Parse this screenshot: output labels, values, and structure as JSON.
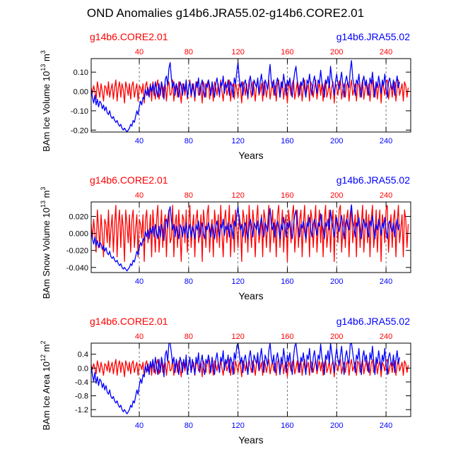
{
  "title": "OND Anomalies g14b6.JRA55.02-g14b6.CORE2.01",
  "colors": {
    "red": "#ff0000",
    "blue": "#0000ff",
    "axis": "#000000",
    "grid": "#555555"
  },
  "chart_data": [
    {
      "type": "line",
      "ylabel": "BAm Ice Volume 10",
      "ylabel_exp": "13",
      "ylabel_unit": " m",
      "ylabel_unit_exp": "3",
      "xlabel": "Years",
      "xlim": [
        1,
        260
      ],
      "ylim": [
        -0.21,
        0.17
      ],
      "yticks": [
        0.1,
        0.0,
        -0.1,
        -0.2
      ],
      "ytick_labels": [
        "0.10",
        "0.00",
        "-0.10",
        "-0.20"
      ],
      "xticks": [
        40,
        80,
        120,
        160,
        200,
        240
      ],
      "xtick_labels": [
        "40",
        "80",
        "120",
        "160",
        "200",
        "240"
      ],
      "vlines": [
        40,
        80,
        120,
        160,
        200,
        240
      ],
      "legend_left": "g14b6.CORE2.01",
      "legend_right": "g14b6.JRA55.02",
      "series": [
        {
          "name": "g14b6.CORE2.01",
          "color": "#ff0000",
          "key": "red"
        },
        {
          "name": "g14b6.JRA55.02",
          "color": "#0000ff",
          "key": "blue"
        }
      ]
    },
    {
      "type": "line",
      "ylabel": "BAm Snow Volume 10",
      "ylabel_exp": "13",
      "ylabel_unit": " m",
      "ylabel_unit_exp": "3",
      "xlabel": "Years",
      "xlim": [
        1,
        260
      ],
      "ylim": [
        -0.046,
        0.037
      ],
      "yticks": [
        0.02,
        0.0,
        -0.02,
        -0.04
      ],
      "ytick_labels": [
        "0.020",
        "0.000",
        "-0.020",
        "-0.040"
      ],
      "xticks": [
        40,
        80,
        120,
        160,
        200,
        240
      ],
      "xtick_labels": [
        "40",
        "80",
        "120",
        "160",
        "200",
        "240"
      ],
      "vlines": [
        40,
        80,
        120,
        160,
        200,
        240
      ],
      "legend_left": "g14b6.CORE2.01",
      "legend_right": "g14b6.JRA55.02",
      "series": [
        {
          "name": "g14b6.CORE2.01",
          "color": "#ff0000",
          "key": "red"
        },
        {
          "name": "g14b6.JRA55.02",
          "color": "#0000ff",
          "key": "blue"
        }
      ]
    },
    {
      "type": "line",
      "ylabel": "BAm Ice Area 10",
      "ylabel_exp": "12",
      "ylabel_unit": " m",
      "ylabel_unit_exp": "2",
      "xlabel": "Years",
      "xlim": [
        1,
        260
      ],
      "ylim": [
        -1.4,
        0.72
      ],
      "yticks": [
        0.4,
        0.0,
        -0.4,
        -0.8,
        -1.2
      ],
      "ytick_labels": [
        "0.4",
        "0.0",
        "-0.4",
        "-0.8",
        "-1.2"
      ],
      "xticks": [
        40,
        80,
        120,
        160,
        200,
        240
      ],
      "xtick_labels": [
        "40",
        "80",
        "120",
        "160",
        "200",
        "240"
      ],
      "vlines": [
        40,
        80,
        120,
        160,
        200,
        240
      ],
      "legend_left": "g14b6.CORE2.01",
      "legend_right": "g14b6.JRA55.02",
      "series": [
        {
          "name": "g14b6.CORE2.01",
          "color": "#ff0000",
          "key": "red"
        },
        {
          "name": "g14b6.JRA55.02",
          "color": "#0000ff",
          "key": "blue"
        }
      ]
    }
  ],
  "series_values": {
    "red_base": [
      0.02,
      -0.01,
      0.03,
      0.0,
      -0.04,
      0.05,
      0.01,
      -0.03,
      0.04,
      0.0,
      -0.05,
      0.03,
      0.02,
      -0.02,
      0.05,
      -0.03,
      0.01,
      0.04,
      -0.04,
      0.02,
      0.06,
      -0.05,
      0.02,
      0.05,
      -0.03,
      0.04,
      0.01,
      -0.06,
      0.05,
      0.02,
      -0.02,
      0.04,
      -0.04,
      0.03,
      0.05,
      -0.03,
      0.01,
      0.04,
      -0.05,
      0.03,
      0.02,
      -0.01,
      0.04,
      -0.06,
      0.03,
      0.05,
      -0.02,
      0.0,
      0.04,
      -0.05,
      0.05,
      0.01,
      -0.04,
      0.03,
      0.06,
      -0.04,
      0.0,
      0.05,
      -0.03,
      0.02,
      0.04,
      -0.05,
      0.03,
      0.05,
      -0.02,
      -0.01,
      0.06,
      -0.05,
      0.02,
      0.04,
      -0.03,
      0.05,
      0.0,
      -0.06,
      0.04,
      0.03,
      -0.02,
      0.05,
      -0.04,
      0.02,
      0.06,
      -0.03,
      0.01,
      0.04,
      -0.05,
      0.03,
      0.05,
      -0.02,
      0.0,
      0.04,
      -0.06,
      0.05,
      0.02,
      -0.03,
      0.04,
      0.06,
      -0.04,
      0.01,
      0.03,
      -0.05,
      0.05,
      0.02,
      -0.02,
      0.04,
      -0.03,
      0.06,
      0.0,
      -0.05,
      0.03,
      0.05,
      -0.02,
      0.01,
      0.06,
      -0.05,
      0.02,
      0.04,
      -0.04,
      0.05,
      0.01,
      -0.03,
      0.04,
      0.02,
      -0.06,
      0.05,
      0.03,
      -0.02,
      0.04,
      -0.04,
      0.06,
      0.01,
      -0.03,
      0.05,
      0.02,
      -0.05,
      0.03,
      0.06,
      -0.02,
      0.0,
      0.04,
      -0.05,
      0.05,
      0.03,
      -0.03,
      0.02,
      0.06,
      -0.04,
      0.01,
      0.05,
      -0.02,
      0.03,
      -0.05,
      0.04,
      0.06,
      -0.03,
      0.01,
      0.05,
      -0.04,
      0.02,
      0.04,
      -0.06,
      0.05,
      0.02,
      -0.02,
      0.04,
      0.06,
      -0.04,
      0.0,
      0.05,
      -0.03,
      0.03,
      0.05,
      -0.05,
      0.02,
      0.06,
      -0.02,
      0.01,
      0.04,
      -0.05,
      0.05,
      0.03,
      -0.03,
      0.02,
      0.06,
      -0.04,
      0.01,
      0.05,
      -0.02,
      0.04,
      -0.05,
      0.03,
      0.06,
      -0.03,
      0.0,
      0.05,
      -0.04,
      0.02,
      0.05,
      -0.06,
      0.04,
      0.02,
      -0.02,
      0.05,
      0.06,
      -0.04,
      0.01,
      0.04,
      -0.03,
      0.03,
      0.05,
      -0.05,
      0.02,
      0.06,
      -0.02,
      0.01,
      0.04,
      -0.05,
      0.05,
      0.03,
      -0.03,
      0.02,
      0.06,
      -0.04,
      0.01,
      0.05,
      -0.02,
      0.04,
      -0.05,
      0.03,
      0.06,
      -0.03,
      0.0,
      0.05,
      -0.04,
      0.02,
      0.05,
      -0.06,
      0.04,
      0.02,
      -0.02,
      0.05,
      0.06,
      -0.04,
      0.01,
      0.04,
      -0.03,
      0.03,
      0.05,
      -0.05,
      0.02,
      0.06,
      -0.02,
      0.01,
      0.04,
      -0.05,
      0.05,
      0.03,
      -0.03,
      0.02
    ],
    "blue_base": [
      0.01,
      -0.03,
      -0.06,
      -0.02,
      -0.07,
      -0.04,
      -0.08,
      -0.05,
      -0.06,
      -0.09,
      -0.07,
      -0.1,
      -0.08,
      -0.11,
      -0.12,
      -0.1,
      -0.13,
      -0.14,
      -0.13,
      -0.15,
      -0.16,
      -0.15,
      -0.17,
      -0.18,
      -0.17,
      -0.19,
      -0.2,
      -0.19,
      -0.2,
      -0.21,
      -0.2,
      -0.19,
      -0.17,
      -0.18,
      -0.15,
      -0.16,
      -0.13,
      -0.1,
      -0.12,
      -0.08,
      -0.05,
      -0.07,
      -0.03,
      -0.04,
      0.01,
      -0.02,
      0.02,
      -0.03,
      0.03,
      0.0,
      0.04,
      -0.02,
      0.05,
      0.01,
      -0.03,
      0.04,
      -0.02,
      0.05,
      0.02,
      -0.04,
      0.06,
      0.08,
      0.03,
      0.12,
      0.15,
      0.07,
      0.02,
      0.05,
      -0.02,
      0.04,
      0.01,
      -0.03,
      0.05,
      0.03,
      -0.02,
      0.04,
      0.0,
      0.06,
      -0.03,
      0.02,
      0.05,
      -0.02,
      0.04,
      0.01,
      -0.03,
      0.05,
      0.02,
      0.07,
      -0.02,
      0.03,
      0.06,
      0.0,
      -0.03,
      0.04,
      0.02,
      0.06,
      0.03,
      -0.02,
      0.05,
      0.01,
      -0.03,
      0.04,
      0.07,
      0.02,
      -0.02,
      0.05,
      0.03,
      0.08,
      -0.01,
      0.04,
      0.02,
      0.06,
      -0.02,
      0.05,
      0.03,
      -0.03,
      0.07,
      0.04,
      0.1,
      0.15,
      0.07,
      0.02,
      0.05,
      -0.02,
      0.04,
      0.06,
      0.01,
      -0.03,
      0.05,
      0.08,
      0.03,
      -0.02,
      0.06,
      0.04,
      0.02,
      0.07,
      -0.01,
      0.05,
      0.09,
      0.03,
      -0.02,
      0.06,
      0.04,
      0.01,
      0.08,
      0.14,
      0.05,
      0.02,
      0.06,
      -0.02,
      0.04,
      0.07,
      0.03,
      -0.03,
      0.05,
      0.02,
      0.09,
      0.04,
      -0.02,
      0.06,
      0.03,
      0.07,
      0.01,
      -0.03,
      0.05,
      0.1,
      0.13,
      0.06,
      0.02,
      -0.02,
      0.05,
      0.03,
      0.07,
      0.01,
      -0.03,
      0.06,
      0.04,
      0.09,
      0.02,
      -0.02,
      0.05,
      0.08,
      0.03,
      -0.01,
      0.06,
      0.04,
      0.11,
      0.05,
      0.02,
      -0.03,
      0.06,
      0.04,
      0.08,
      0.02,
      0.13,
      0.07,
      0.03,
      -0.02,
      0.05,
      0.09,
      0.04,
      0.01,
      0.06,
      0.1,
      0.03,
      -0.03,
      0.05,
      0.08,
      0.04,
      0.02,
      0.11,
      0.16,
      0.07,
      0.03,
      -0.02,
      0.06,
      0.04,
      0.09,
      0.02,
      -0.03,
      0.05,
      0.08,
      0.03,
      0.06,
      0.01,
      -0.02,
      0.07,
      0.04,
      0.1,
      0.03,
      -0.03,
      0.05,
      0.02,
      0.08,
      0.04,
      -0.01,
      0.06,
      0.03,
      0.09,
      0.02,
      -0.03,
      0.05,
      0.07,
      0.03,
      0.01,
      0.06,
      -0.02,
      0.04,
      0.08,
      0.02,
      0.05
    ]
  }
}
